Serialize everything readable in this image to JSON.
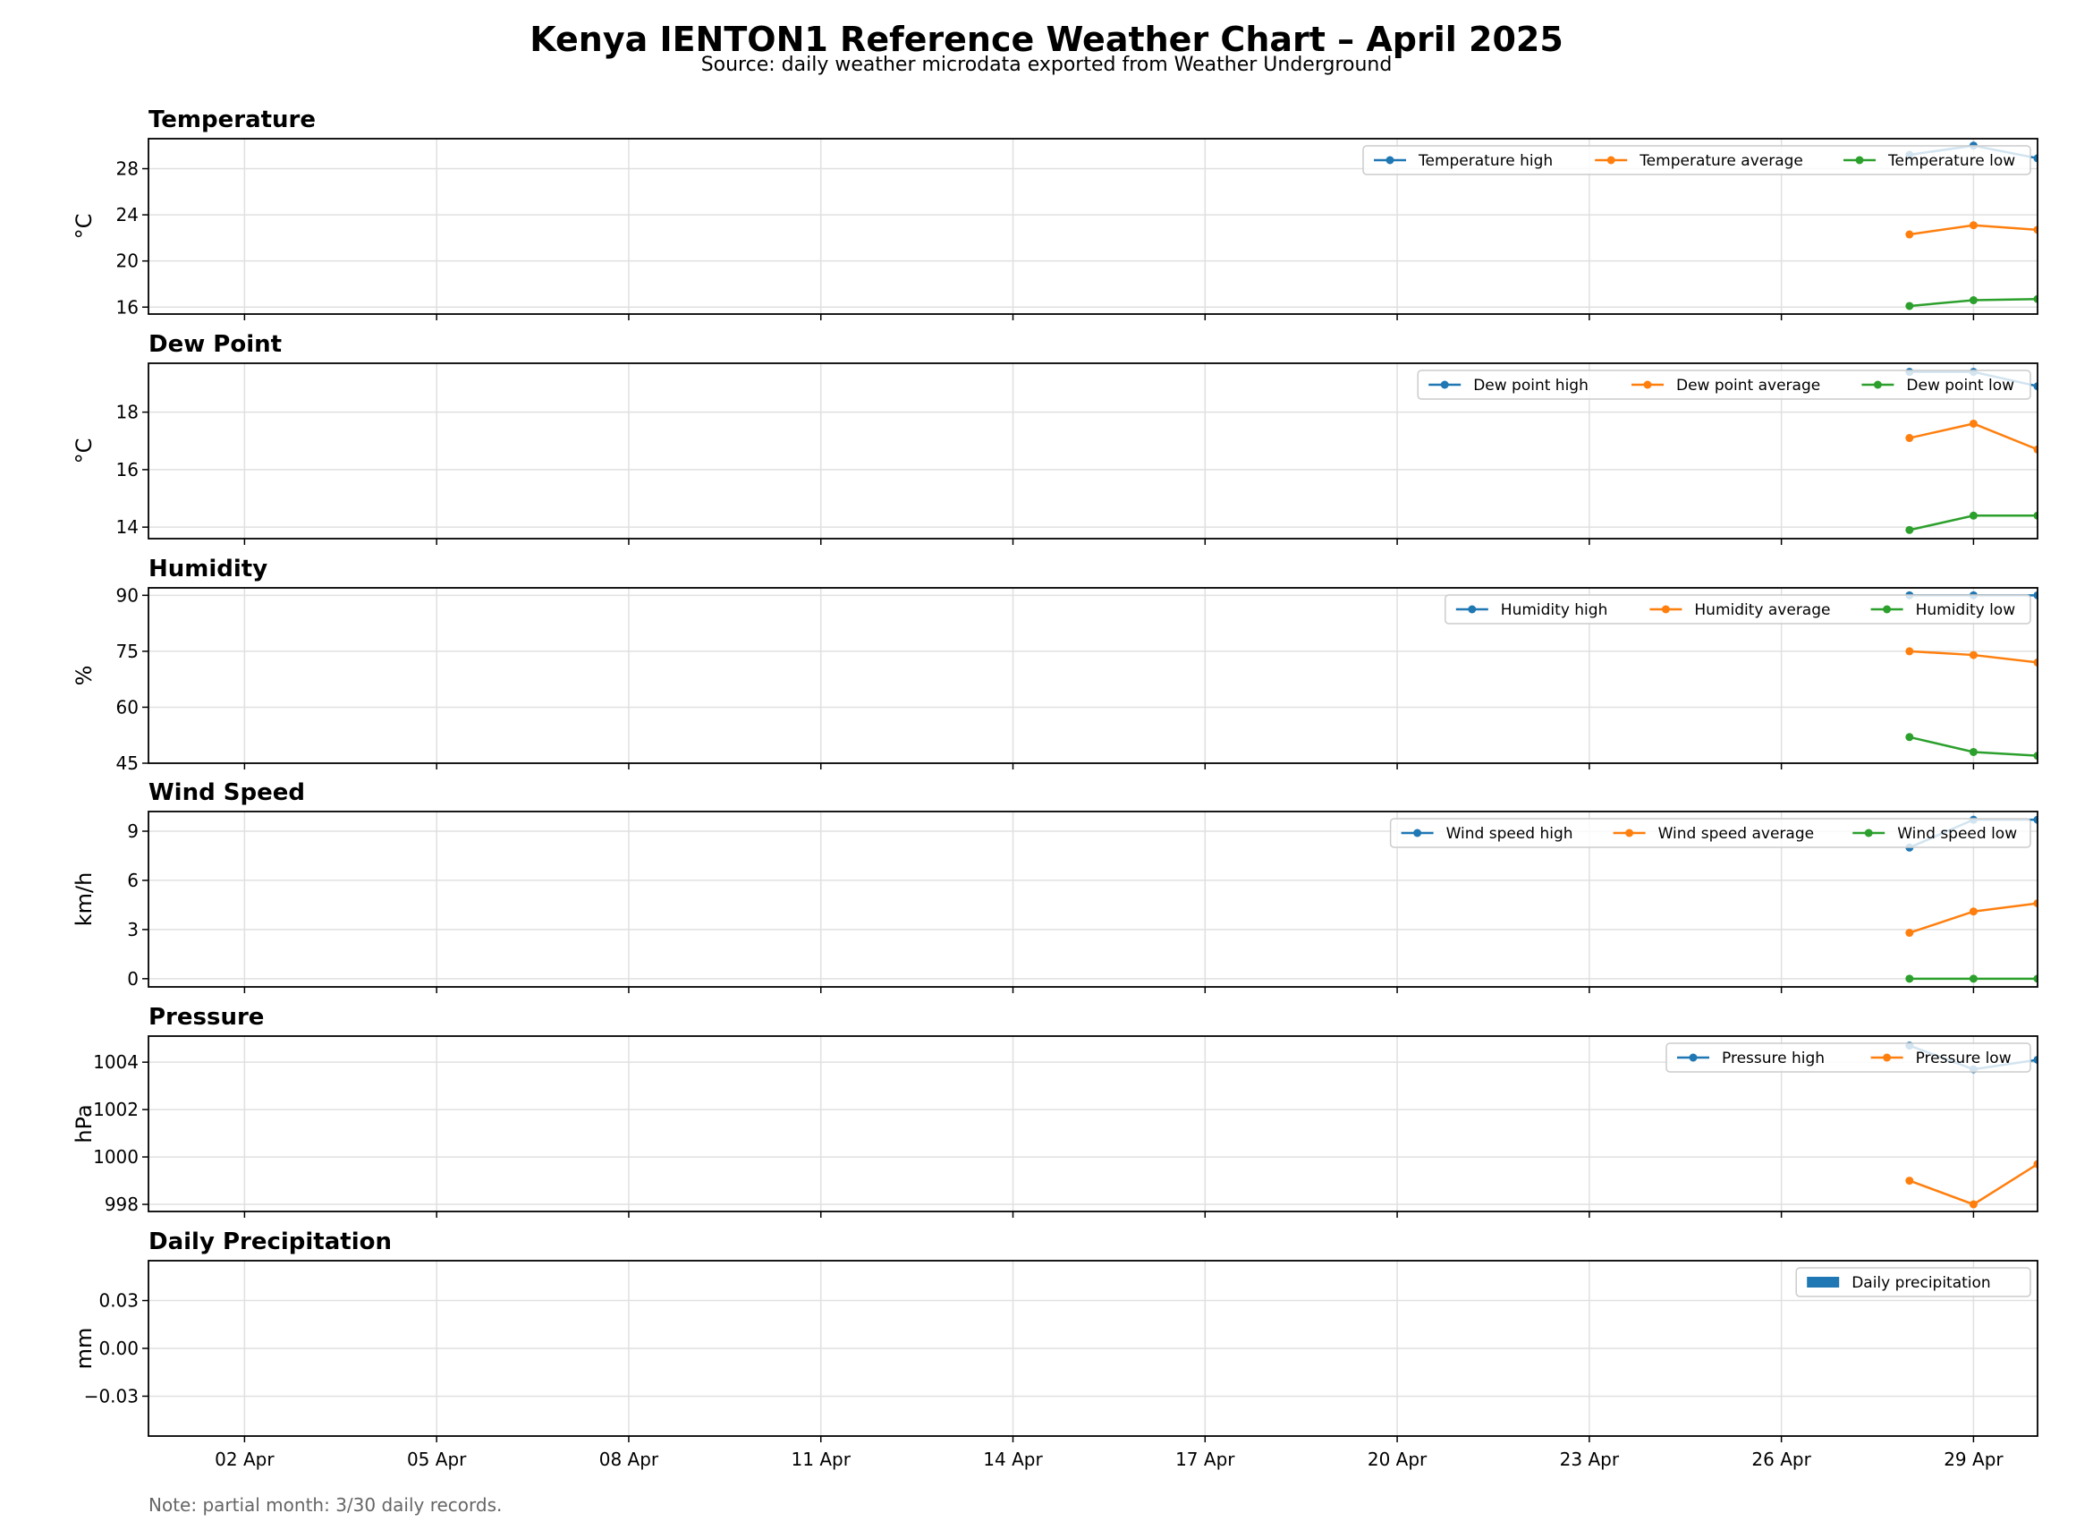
{
  "title": "Kenya IENTON1 Reference Weather Chart – April 2025",
  "subtitle": "Source: daily weather microdata exported from Weather Underground",
  "footnote": "Note: partial month: 3/30 daily records.",
  "colors": {
    "blue": "#1f77b4",
    "orange": "#ff7f0e",
    "green": "#2ca02c"
  },
  "chart_data": [
    {
      "type": "line",
      "title": "Temperature",
      "ylabel": "°C",
      "x": [
        "2025-04-28",
        "2025-04-29",
        "2025-04-30"
      ],
      "xlim": [
        "2025-04-01",
        "2025-04-30"
      ],
      "xticks": [
        "02 Apr",
        "05 Apr",
        "08 Apr",
        "11 Apr",
        "14 Apr",
        "17 Apr",
        "20 Apr",
        "23 Apr",
        "26 Apr",
        "29 Apr"
      ],
      "ylim": [
        15.4,
        30.6
      ],
      "yticks": [
        16,
        20,
        24,
        28
      ],
      "grid": true,
      "legend": "upper-right",
      "series": [
        {
          "name": "Temperature high",
          "color": "#1f77b4",
          "values": [
            29.2,
            30.0,
            28.9
          ]
        },
        {
          "name": "Temperature average",
          "color": "#ff7f0e",
          "values": [
            22.3,
            23.1,
            22.7
          ]
        },
        {
          "name": "Temperature low",
          "color": "#2ca02c",
          "values": [
            16.1,
            16.6,
            16.7
          ]
        }
      ]
    },
    {
      "type": "line",
      "title": "Dew Point",
      "ylabel": "°C",
      "x": [
        "2025-04-28",
        "2025-04-29",
        "2025-04-30"
      ],
      "xlim": [
        "2025-04-01",
        "2025-04-30"
      ],
      "xticks": [
        "02 Apr",
        "05 Apr",
        "08 Apr",
        "11 Apr",
        "14 Apr",
        "17 Apr",
        "20 Apr",
        "23 Apr",
        "26 Apr",
        "29 Apr"
      ],
      "ylim": [
        13.6,
        19.7
      ],
      "yticks": [
        14,
        16,
        18
      ],
      "grid": true,
      "legend": "upper-right",
      "series": [
        {
          "name": "Dew point high",
          "color": "#1f77b4",
          "values": [
            19.4,
            19.4,
            18.9
          ]
        },
        {
          "name": "Dew point average",
          "color": "#ff7f0e",
          "values": [
            17.1,
            17.6,
            16.7
          ]
        },
        {
          "name": "Dew point low",
          "color": "#2ca02c",
          "values": [
            13.9,
            14.4,
            14.4
          ]
        }
      ]
    },
    {
      "type": "line",
      "title": "Humidity",
      "ylabel": "%",
      "x": [
        "2025-04-28",
        "2025-04-29",
        "2025-04-30"
      ],
      "xlim": [
        "2025-04-01",
        "2025-04-30"
      ],
      "xticks": [
        "02 Apr",
        "05 Apr",
        "08 Apr",
        "11 Apr",
        "14 Apr",
        "17 Apr",
        "20 Apr",
        "23 Apr",
        "26 Apr",
        "29 Apr"
      ],
      "ylim": [
        45,
        92
      ],
      "yticks": [
        45,
        60,
        75,
        90
      ],
      "grid": true,
      "legend": "upper-right",
      "series": [
        {
          "name": "Humidity high",
          "color": "#1f77b4",
          "values": [
            90,
            90,
            90
          ]
        },
        {
          "name": "Humidity average",
          "color": "#ff7f0e",
          "values": [
            75,
            74,
            72
          ]
        },
        {
          "name": "Humidity low",
          "color": "#2ca02c",
          "values": [
            52,
            48,
            47
          ]
        }
      ]
    },
    {
      "type": "line",
      "title": "Wind Speed",
      "ylabel": "km/h",
      "x": [
        "2025-04-28",
        "2025-04-29",
        "2025-04-30"
      ],
      "xlim": [
        "2025-04-01",
        "2025-04-30"
      ],
      "xticks": [
        "02 Apr",
        "05 Apr",
        "08 Apr",
        "11 Apr",
        "14 Apr",
        "17 Apr",
        "20 Apr",
        "23 Apr",
        "26 Apr",
        "29 Apr"
      ],
      "ylim": [
        -0.5,
        10.2
      ],
      "yticks": [
        0,
        3,
        6,
        9
      ],
      "grid": true,
      "legend": "upper-right",
      "series": [
        {
          "name": "Wind speed high",
          "color": "#1f77b4",
          "values": [
            8.0,
            9.7,
            9.7
          ]
        },
        {
          "name": "Wind speed average",
          "color": "#ff7f0e",
          "values": [
            2.8,
            4.1,
            4.6
          ]
        },
        {
          "name": "Wind speed low",
          "color": "#2ca02c",
          "values": [
            0,
            0,
            0
          ]
        }
      ]
    },
    {
      "type": "line",
      "title": "Pressure",
      "ylabel": "hPa",
      "x": [
        "2025-04-28",
        "2025-04-29",
        "2025-04-30"
      ],
      "xlim": [
        "2025-04-01",
        "2025-04-30"
      ],
      "xticks": [
        "02 Apr",
        "05 Apr",
        "08 Apr",
        "11 Apr",
        "14 Apr",
        "17 Apr",
        "20 Apr",
        "23 Apr",
        "26 Apr",
        "29 Apr"
      ],
      "ylim": [
        997.7,
        1005.1
      ],
      "yticks": [
        998,
        1000,
        1002,
        1004
      ],
      "grid": true,
      "legend": "upper-right",
      "series": [
        {
          "name": "Pressure high",
          "color": "#1f77b4",
          "values": [
            1004.7,
            1003.7,
            1004.1
          ]
        },
        {
          "name": "Pressure low",
          "color": "#ff7f0e",
          "values": [
            999.0,
            998.0,
            999.7
          ]
        }
      ]
    },
    {
      "type": "bar",
      "title": "Daily Precipitation",
      "ylabel": "mm",
      "x": [
        "2025-04-28",
        "2025-04-29",
        "2025-04-30"
      ],
      "xlim": [
        "2025-04-01",
        "2025-04-30"
      ],
      "xticks": [
        "02 Apr",
        "05 Apr",
        "08 Apr",
        "11 Apr",
        "14 Apr",
        "17 Apr",
        "20 Apr",
        "23 Apr",
        "26 Apr",
        "29 Apr"
      ],
      "xtick_labels_shown": true,
      "ylim": [
        -0.055,
        0.055
      ],
      "yticks": [
        -0.03,
        0.0,
        0.03
      ],
      "ytick_labels": [
        "−0.03",
        "0.00",
        "0.03"
      ],
      "grid": true,
      "legend": "upper-right",
      "series": [
        {
          "name": "Daily precipitation",
          "color": "#1f77b4",
          "values": [
            0,
            0,
            0
          ]
        }
      ]
    }
  ]
}
